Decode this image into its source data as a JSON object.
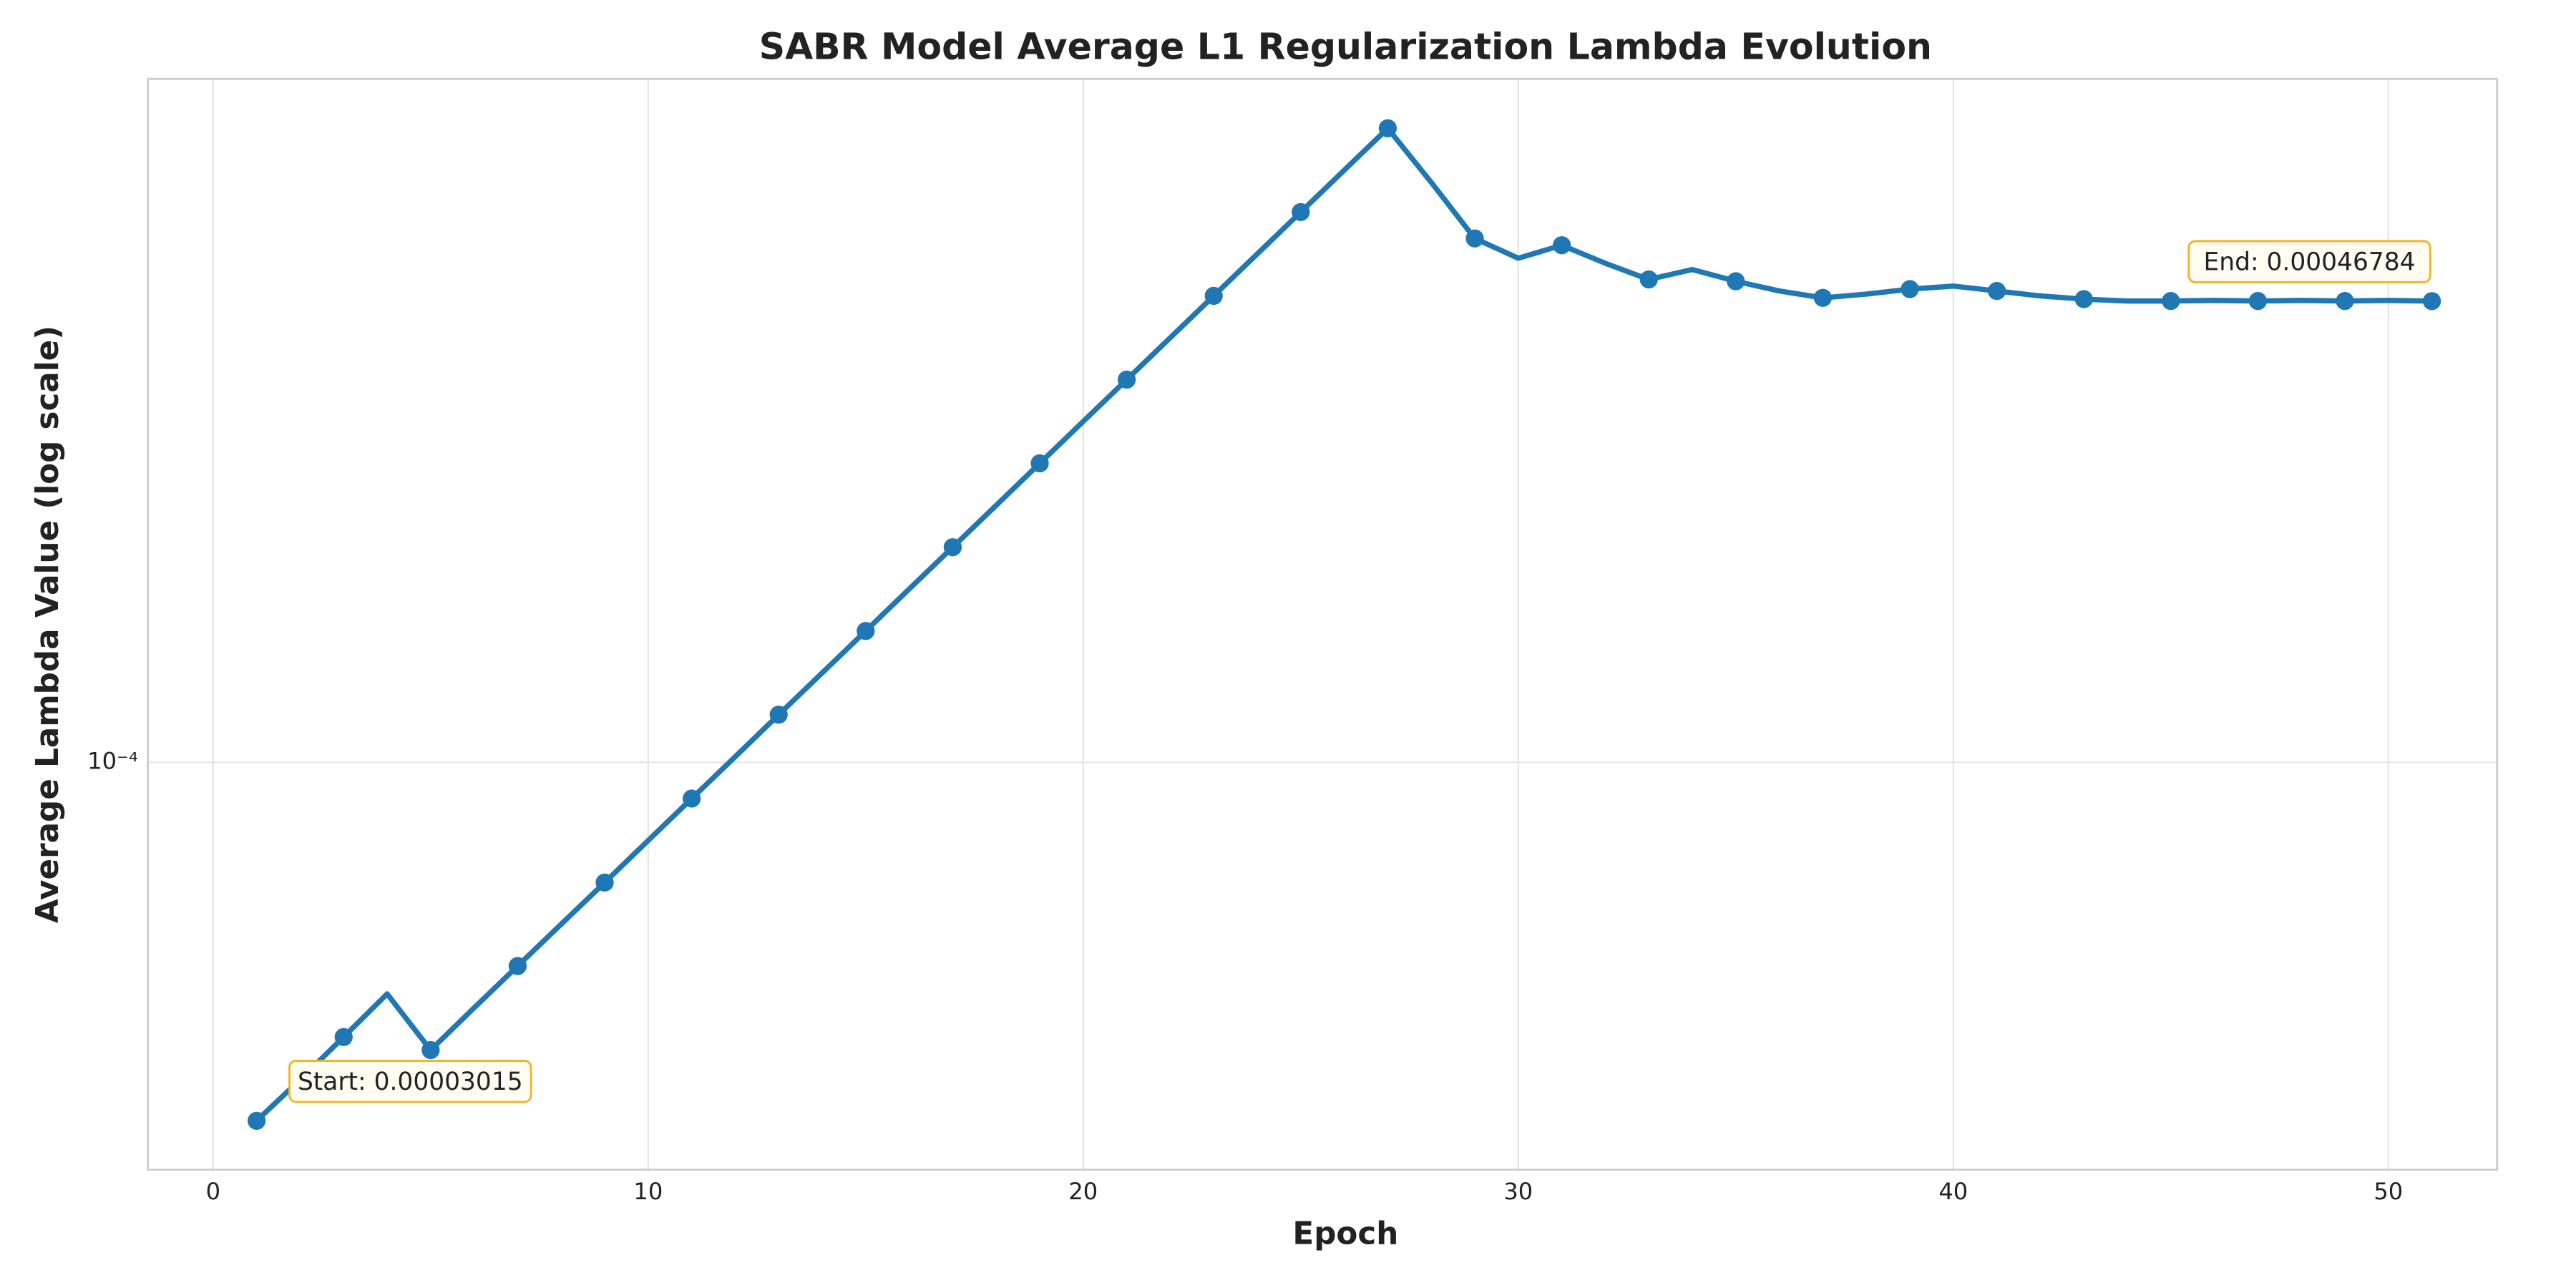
{
  "chart_data": {
    "type": "line",
    "title": "SABR Model Average L1 Regularization Lambda Evolution",
    "xlabel": "Epoch",
    "ylabel": "Average Lambda Value (log scale)",
    "x": [
      1,
      2,
      3,
      4,
      5,
      6,
      7,
      8,
      9,
      10,
      11,
      12,
      13,
      14,
      15,
      16,
      17,
      18,
      19,
      20,
      21,
      22,
      23,
      24,
      25,
      26,
      27,
      28,
      29,
      30,
      31,
      32,
      33,
      34,
      35,
      36,
      37,
      38,
      39,
      40,
      41,
      42,
      43,
      44,
      45,
      46,
      47,
      48,
      49,
      50,
      51
    ],
    "values": [
      3.015e-05,
      3.46e-05,
      3.99e-05,
      4.61e-05,
      3.82e-05,
      4.4e-05,
      5.06e-05,
      5.82e-05,
      6.69e-05,
      7.7e-05,
      8.86e-05,
      0.0001019,
      0.0001173,
      0.0001349,
      0.0001552,
      0.0001786,
      0.0002054,
      0.0002363,
      0.0002719,
      0.0003128,
      0.0003598,
      0.0004139,
      0.0004762,
      0.0005478,
      0.0006302,
      0.000725,
      0.000834,
      0.000696,
      0.000577,
      0.00054,
      0.000564,
      0.000531,
      0.000503,
      0.00052,
      0.0005,
      0.000484,
      0.000473,
      0.000479,
      0.000487,
      0.000492,
      0.000484,
      0.000476,
      0.000471,
      0.000468,
      0.000468,
      0.000469,
      0.000468,
      0.000469,
      0.000468,
      0.000469,
      0.00046784
    ],
    "color": "#1f77b4",
    "marker_every": 2,
    "xlim": [
      -1.5,
      52.5
    ],
    "xticks": [
      0,
      10,
      20,
      30,
      40,
      50
    ],
    "ylim": [
      2.56e-05,
      0.000984
    ],
    "yticks": [
      {
        "value": 0.0001,
        "label": "10⁻⁴"
      }
    ],
    "log_y": true,
    "grid": true,
    "annotations": [
      {
        "text": "Start: 0.00003015"
      },
      {
        "text": "End: 0.00046784"
      }
    ]
  }
}
